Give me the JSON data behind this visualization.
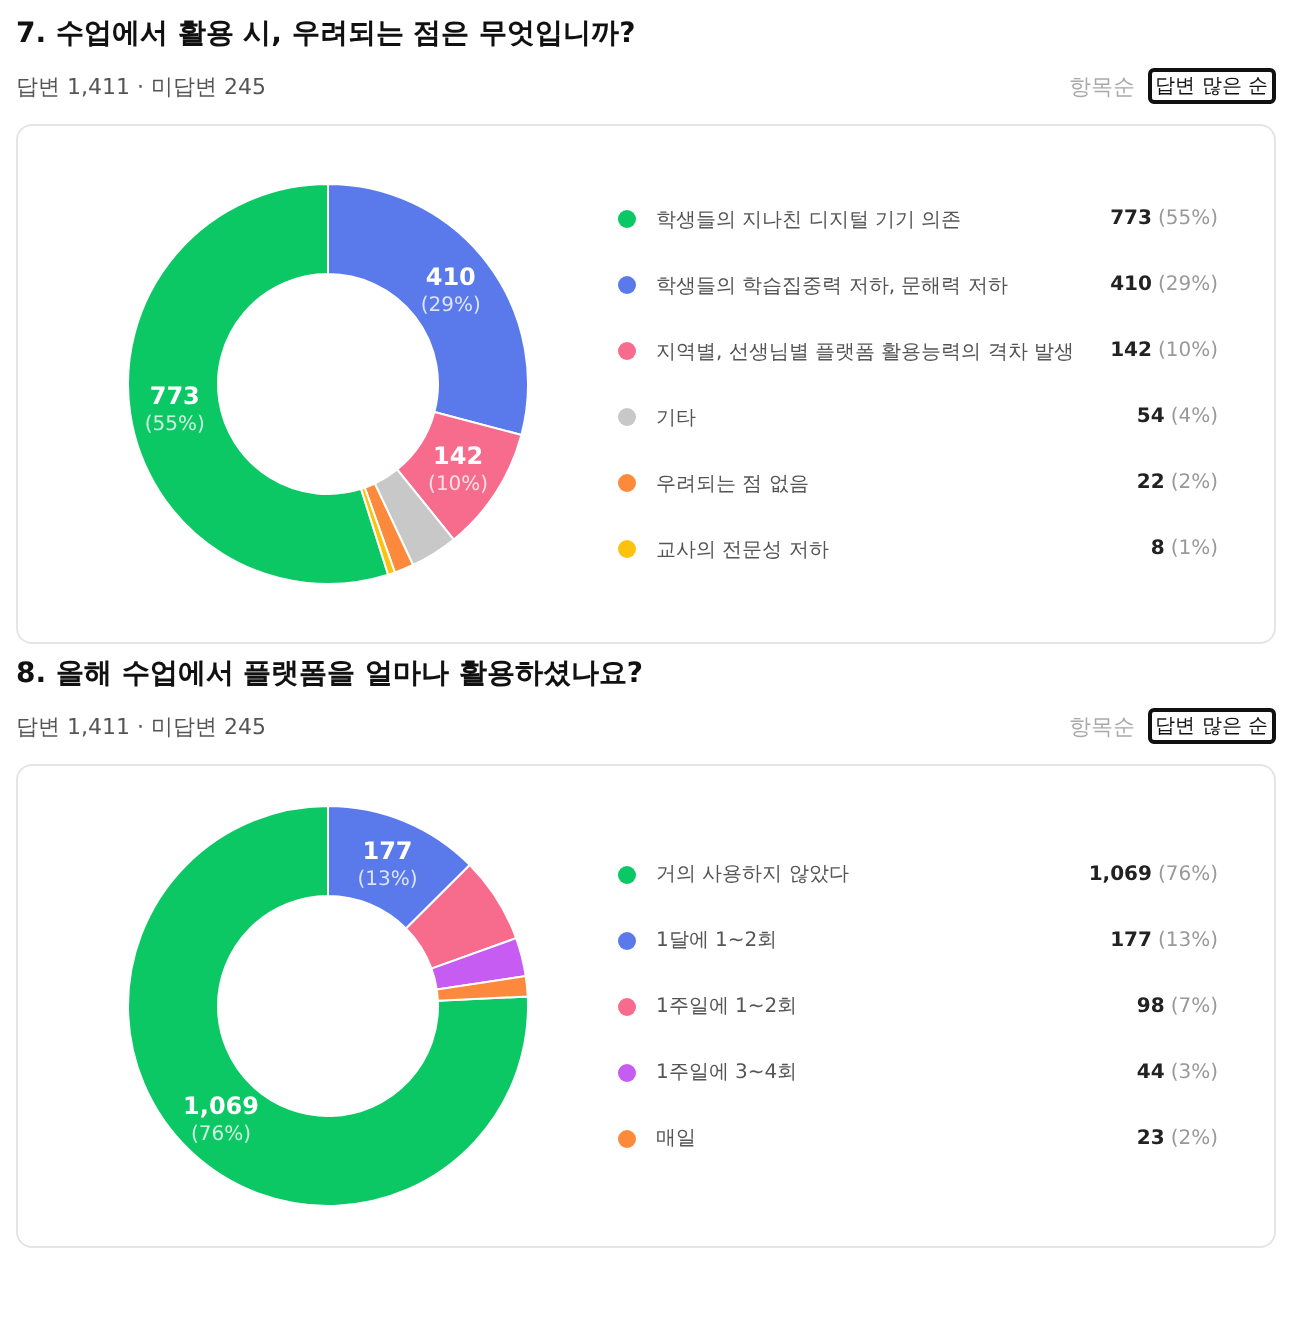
{
  "chart_data": [
    {
      "type": "donut",
      "title": "7. 수업에서 활용 시, 우려되는 점은 무엇입니까?",
      "subtitle": "답변 1,411 · 미답변 245",
      "annotations": [
        "항목순",
        "답변 많은 순"
      ],
      "legend": "right",
      "categories": [
        "학생들의 지나친 디지털 기기 의존",
        "학생들의 학습집중력 저하, 문해력 저하",
        "지역별, 선생님별 플랫폼 활용능력의 격차 발생",
        "기타",
        "우려되는 점 없음",
        "교사의 전문성 저하"
      ],
      "values": [
        773,
        410,
        142,
        54,
        22,
        8
      ],
      "value_labels": [
        "773 (55%)",
        "410 (29%)",
        "142 (10%)",
        "54 (4%)",
        "22 (2%)",
        "8 (1%)"
      ],
      "colors": [
        "#0cc864",
        "#5a7aeb",
        "#f76b8c",
        "#c8c8c8",
        "#fd8a3c",
        "#fdc20c"
      ]
    },
    {
      "type": "donut",
      "title": "8. 올해 수업에서 플랫폼을 얼마나 활용하셨나요?",
      "subtitle": "답변 1,411 · 미답변 245",
      "annotations": [
        "항목순",
        "답변 많은 순"
      ],
      "legend": "right",
      "categories": [
        "거의 사용하지 않았다",
        "1달에 1~2회",
        "1주일에 1~2회",
        "1주일에 3~4회",
        "매일"
      ],
      "values": [
        1069,
        177,
        98,
        44,
        23
      ],
      "value_labels": [
        "1,069 (76%)",
        "177 (13%)",
        "98 (7%)",
        "44 (3%)",
        "23 (2%)"
      ],
      "colors": [
        "#0cc864",
        "#5a7aeb",
        "#f76b8c",
        "#c65cf2",
        "#fd8a3c"
      ]
    }
  ]
}
